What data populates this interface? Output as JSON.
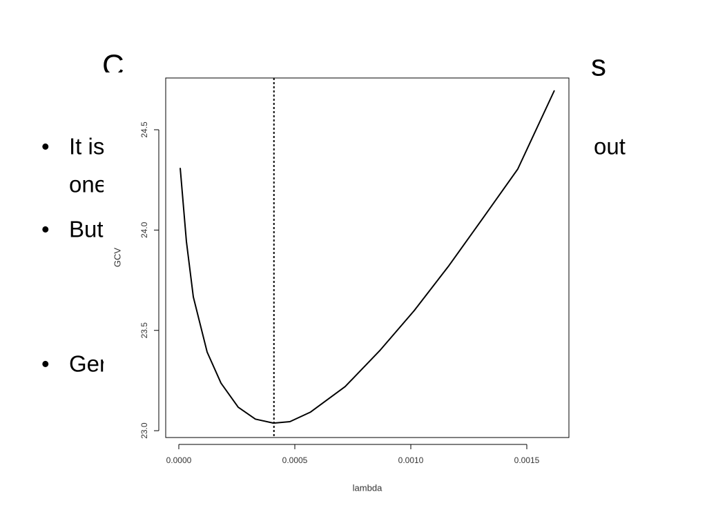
{
  "slide": {
    "title_left": "C",
    "title_right": "s",
    "bullets": [
      "It is",
      "out",
      "one",
      "But",
      "Ger"
    ]
  },
  "chart_data": {
    "type": "line",
    "xlabel": "lambda",
    "ylabel": "GCV",
    "x": [
      6e-06,
      3.27e-05,
      6.25e-05,
      0.000122,
      0.000182,
      0.000256,
      0.00033,
      0.000408,
      0.000479,
      0.000568,
      0.000717,
      0.000866,
      0.001015,
      0.001164,
      0.001313,
      0.001461,
      0.001619
    ],
    "values": [
      24.31,
      23.943,
      23.667,
      23.392,
      23.237,
      23.117,
      23.058,
      23.038,
      23.045,
      23.093,
      23.22,
      23.399,
      23.599,
      23.822,
      24.063,
      24.304,
      24.696
    ],
    "color": "#000000",
    "vline": 0.00041,
    "xlim": [
      -5.65e-05,
      0.0016815
    ],
    "ylim": [
      22.966,
      24.758
    ],
    "xticks": [
      {
        "value": 0,
        "label": "0.0000"
      },
      {
        "value": 0.0005,
        "label": "0.0005"
      },
      {
        "value": 0.001,
        "label": "0.0010"
      },
      {
        "value": 0.0015,
        "label": "0.0015"
      }
    ],
    "yticks": [
      {
        "value": 23,
        "label": "23.0"
      },
      23.5,
      {
        "value": 24,
        "label": "24.0"
      },
      24.5
    ],
    "grid": false
  }
}
